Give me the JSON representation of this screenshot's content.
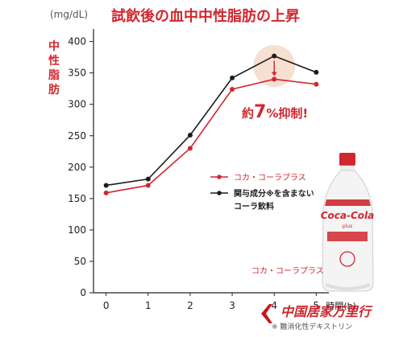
{
  "colors": {
    "red": "#d1272f",
    "black": "#1c1c1c",
    "axis": "#222222",
    "highlight": "#f6d9c9",
    "watermark": "#c8161d",
    "gray_text": "#555555"
  },
  "chart_data": {
    "type": "line",
    "title": "試飲後の血中中性脂肪の上昇",
    "unit": "(mg/dL)",
    "ylabel_chars": [
      "中",
      "性",
      "脂",
      "肪"
    ],
    "xlabel": "時間(h)",
    "x": [
      0,
      1,
      2,
      3,
      4,
      5
    ],
    "xlim": [
      -0.3,
      5.3
    ],
    "ylim": [
      0,
      420
    ],
    "yticks": [
      0,
      50,
      100,
      150,
      200,
      250,
      300,
      350,
      400
    ],
    "grid": false,
    "legend_position": "right-middle",
    "series": [
      {
        "name": "コカ・コーラプラス",
        "color": "#d1272f",
        "values": [
          159,
          171,
          230,
          324,
          340,
          332
        ]
      },
      {
        "name": "関与成分※を含まないコーラ飲料",
        "color": "#1c1c1c",
        "values": [
          171,
          181,
          251,
          342,
          377,
          351
        ]
      }
    ],
    "annotations": {
      "reduction_prefix": "約",
      "reduction_value": "7",
      "reduction_suffix": "%抑制!",
      "highlight_x": 4
    }
  },
  "legend": {
    "item1": "コカ・コーラプラス",
    "item2_line1": "関与成分※を含まない",
    "item2_line2": "コーラ飲料"
  },
  "product": {
    "caption": "コカ・コーラプラス",
    "brand": "Coca-Cola",
    "sub": "plus"
  },
  "footnote": "※ 難消化性デキストリン",
  "watermark": "中国居家万里行"
}
